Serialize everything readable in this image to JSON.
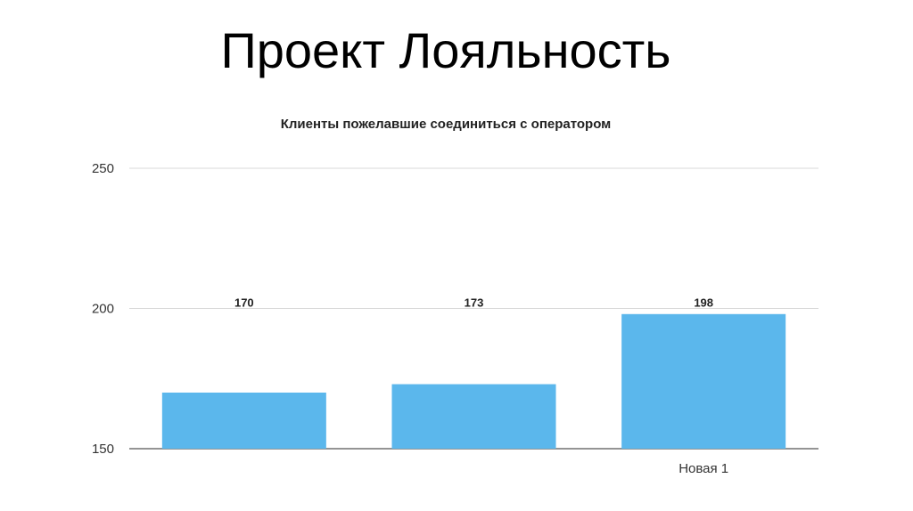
{
  "slide": {
    "title": "Проект Лояльность"
  },
  "chart_data": {
    "type": "bar",
    "title": "Клиенты пожелавшие соединиться с оператором",
    "categories": [
      "",
      "",
      "Новая 1"
    ],
    "values": [
      170,
      173,
      198
    ],
    "data_labels": [
      "170",
      "173",
      "198"
    ],
    "ylim": [
      150,
      250
    ],
    "yticks": [
      150,
      200,
      250
    ],
    "xlabel": "",
    "ylabel": "",
    "grid": true,
    "legend": "none",
    "colors": {
      "bar": "#5bb7ec",
      "grid": "#d9d9d9",
      "axis": "#555555"
    }
  }
}
